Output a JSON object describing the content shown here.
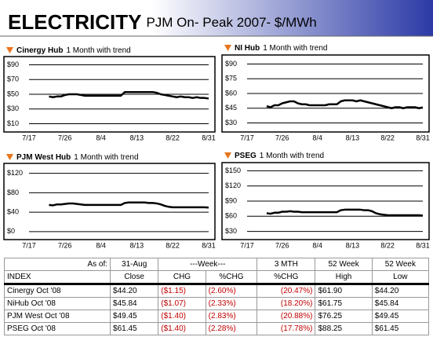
{
  "header": {
    "title": "ELECTRICITY",
    "subtitle": "PJM On- Peak 2007- $/MWh"
  },
  "chart_data": [
    {
      "type": "line",
      "title": "Cinergy Hub",
      "subtitle": "1 Month with trend",
      "color": "#000000",
      "categories": [
        "7/17",
        null,
        null,
        null,
        null,
        null,
        null,
        null,
        null,
        "7/26",
        null,
        null,
        null,
        null,
        null,
        null,
        null,
        null,
        "8/4",
        null,
        null,
        null,
        null,
        null,
        null,
        null,
        null,
        "8/13",
        null,
        null,
        null,
        null,
        null,
        null,
        null,
        null,
        "8/22",
        null,
        null,
        null,
        null,
        null,
        null,
        null,
        null,
        "8/31"
      ],
      "values": [
        null,
        null,
        null,
        null,
        null,
        47,
        46,
        47,
        47,
        49,
        50,
        50,
        50,
        49,
        48,
        48,
        48,
        48,
        48,
        48,
        48,
        48,
        48,
        48,
        53,
        53,
        53,
        53,
        53,
        53,
        53,
        53,
        52,
        50,
        49,
        48,
        47,
        46,
        47,
        46,
        46,
        45,
        46,
        45,
        45,
        44.2
      ],
      "ylim": [
        3,
        97
      ],
      "yticks": [
        {
          "value": 10,
          "label": "$10"
        },
        {
          "value": 30,
          "label": "$30"
        },
        {
          "value": 50,
          "label": "$50"
        },
        {
          "value": 70,
          "label": "$70"
        },
        {
          "value": 90,
          "label": "$90"
        }
      ],
      "grid": true
    },
    {
      "type": "line",
      "title": "NI Hub",
      "subtitle": "1 Month with trend",
      "color": "#000000",
      "categories": [
        "7/17",
        null,
        null,
        null,
        null,
        null,
        null,
        null,
        null,
        "7/26",
        null,
        null,
        null,
        null,
        null,
        null,
        null,
        null,
        "8/4",
        null,
        null,
        null,
        null,
        null,
        null,
        null,
        null,
        "8/13",
        null,
        null,
        null,
        null,
        null,
        null,
        null,
        null,
        "8/22",
        null,
        null,
        null,
        null,
        null,
        null,
        null,
        null,
        "8/31"
      ],
      "values": [
        null,
        null,
        null,
        null,
        null,
        47,
        46,
        48,
        48,
        50,
        51,
        52,
        52,
        50,
        49,
        49,
        48,
        48,
        48,
        48,
        48,
        49,
        49,
        49,
        52,
        53,
        53,
        53,
        52,
        53,
        52,
        51,
        50,
        49,
        48,
        47,
        46,
        45,
        46,
        46,
        45,
        46,
        46,
        46,
        45,
        45.8
      ],
      "ylim": [
        24,
        96
      ],
      "yticks": [
        {
          "value": 30,
          "label": "$30"
        },
        {
          "value": 45,
          "label": "$45"
        },
        {
          "value": 60,
          "label": "$60"
        },
        {
          "value": 75,
          "label": "$75"
        },
        {
          "value": 90,
          "label": "$90"
        }
      ],
      "grid": true
    },
    {
      "type": "line",
      "title": "PJM West Hub",
      "subtitle": "1 Month with trend",
      "color": "#000000",
      "categories": [
        "7/17",
        null,
        null,
        null,
        null,
        null,
        null,
        null,
        null,
        "7/26",
        null,
        null,
        null,
        null,
        null,
        null,
        null,
        null,
        "8/4",
        null,
        null,
        null,
        null,
        null,
        null,
        null,
        null,
        "8/13",
        null,
        null,
        null,
        null,
        null,
        null,
        null,
        null,
        "8/22",
        null,
        null,
        null,
        null,
        null,
        null,
        null,
        null,
        "8/31"
      ],
      "values": [
        null,
        null,
        null,
        null,
        null,
        55,
        54,
        56,
        56,
        57,
        58,
        58,
        57,
        56,
        55,
        55,
        55,
        55,
        55,
        55,
        55,
        55,
        55,
        55,
        59,
        60,
        60,
        60,
        60,
        60,
        59,
        59,
        58,
        56,
        53,
        51,
        50,
        50,
        50,
        50,
        50,
        50,
        50,
        50,
        50,
        49.5
      ],
      "ylim": [
        -10,
        134
      ],
      "yticks": [
        {
          "value": 0,
          "label": "$0"
        },
        {
          "value": 40,
          "label": "$40"
        },
        {
          "value": 80,
          "label": "$80"
        },
        {
          "value": 120,
          "label": "$120"
        }
      ],
      "grid": true
    },
    {
      "type": "line",
      "title": "PSEG",
      "subtitle": "1 Month with trend",
      "color": "#000000",
      "categories": [
        "7/17",
        null,
        null,
        null,
        null,
        null,
        null,
        null,
        null,
        "7/26",
        null,
        null,
        null,
        null,
        null,
        null,
        null,
        null,
        "8/4",
        null,
        null,
        null,
        null,
        null,
        null,
        null,
        null,
        "8/13",
        null,
        null,
        null,
        null,
        null,
        null,
        null,
        null,
        "8/22",
        null,
        null,
        null,
        null,
        null,
        null,
        null,
        null,
        "8/31"
      ],
      "values": [
        null,
        null,
        null,
        null,
        null,
        66,
        65,
        67,
        67,
        69,
        69,
        70,
        69,
        69,
        68,
        68,
        68,
        68,
        68,
        68,
        68,
        68,
        68,
        68,
        72,
        73,
        73,
        73,
        73,
        73,
        72,
        72,
        70,
        66,
        64,
        63,
        62,
        62,
        62,
        62,
        62,
        62,
        62,
        62,
        62,
        61.5
      ],
      "ylim": [
        20,
        160
      ],
      "yticks": [
        {
          "value": 30,
          "label": "$30"
        },
        {
          "value": 60,
          "label": "$60"
        },
        {
          "value": 90,
          "label": "$90"
        },
        {
          "value": 120,
          "label": "$120"
        },
        {
          "value": 150,
          "label": "$150"
        }
      ],
      "grid": true
    }
  ],
  "table": {
    "header": [
      [
        "As of:",
        "31-Aug",
        "---Week---",
        "3 MTH",
        "52 Week",
        "52 Week"
      ],
      [
        "INDEX",
        "Close",
        "CHG",
        "%CHG",
        "%CHG",
        "High",
        "Low"
      ]
    ],
    "rows": [
      [
        "Cinergy Oct '08",
        "$44.20",
        "($1.15)",
        "(2.60%)",
        "(20.47%)",
        "$61.90",
        "$44.20"
      ],
      [
        "NiHub Oct '08",
        "$45.84",
        "($1.07)",
        "(2.33%)",
        "(18.20%)",
        "$61.75",
        "$45.84"
      ],
      [
        "PJM West Oct '08",
        "$49.45",
        "($1.40)",
        "(2.83%)",
        "(20.88%)",
        "$76.25",
        "$49.45"
      ],
      [
        "PSEG Oct '08",
        "$61.45",
        "($1.40)",
        "(2.28%)",
        "(17.78%)",
        "$88.25",
        "$61.45"
      ]
    ]
  }
}
